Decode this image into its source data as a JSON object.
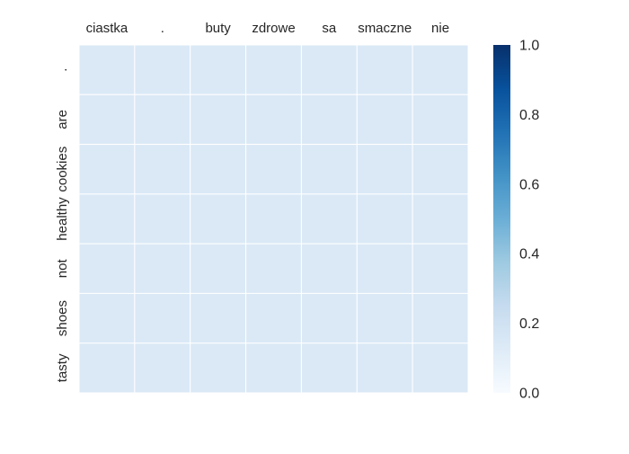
{
  "chart_data": {
    "type": "heatmap",
    "x_labels": [
      "ciastka",
      ".",
      "buty",
      "zdrowe",
      "sa",
      "smaczne",
      "nie"
    ],
    "y_labels": [
      ".",
      "are",
      "cookies",
      "healthy",
      "not",
      "shoes",
      "tasty"
    ],
    "values": [
      [
        0.14,
        0.14,
        0.14,
        0.14,
        0.14,
        0.14,
        0.14
      ],
      [
        0.14,
        0.14,
        0.14,
        0.14,
        0.14,
        0.14,
        0.14
      ],
      [
        0.14,
        0.14,
        0.14,
        0.14,
        0.14,
        0.14,
        0.14
      ],
      [
        0.14,
        0.14,
        0.14,
        0.14,
        0.14,
        0.14,
        0.14
      ],
      [
        0.14,
        0.14,
        0.14,
        0.14,
        0.14,
        0.14,
        0.14
      ],
      [
        0.14,
        0.14,
        0.14,
        0.14,
        0.14,
        0.14,
        0.14
      ],
      [
        0.14,
        0.14,
        0.14,
        0.14,
        0.14,
        0.14,
        0.14
      ]
    ],
    "vmin": 0.0,
    "vmax": 1.0,
    "colormap": "Blues",
    "colorbar": {
      "ticks": [
        0.0,
        0.2,
        0.4,
        0.6,
        0.8,
        1.0
      ],
      "tick_labels": [
        "0.0",
        "0.2",
        "0.4",
        "0.6",
        "0.8",
        "1.0"
      ]
    },
    "x_axis_position": "top",
    "y_label_rotation": "vertical",
    "cell_gridlines": true,
    "gridline_color": "#ffffff"
  }
}
